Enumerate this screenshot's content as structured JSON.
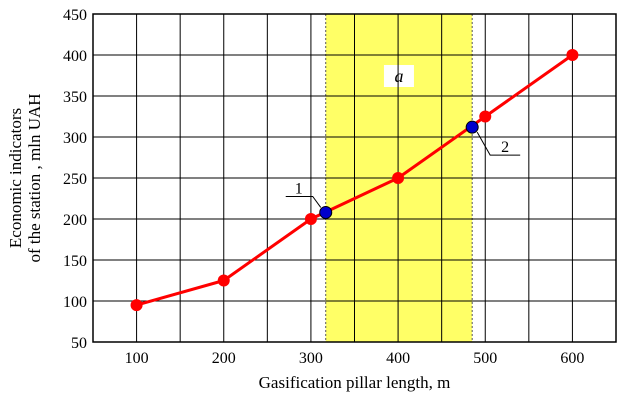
{
  "chart_data": {
    "type": "line",
    "title": "",
    "xlabel": "Gasification pillar length, m",
    "ylabel_lines": [
      "Economic indicators",
      "of the station , mln UAH"
    ],
    "xlim": [
      50,
      650
    ],
    "ylim": [
      50,
      450
    ],
    "x_ticks": [
      100,
      200,
      300,
      400,
      500,
      600
    ],
    "y_ticks": [
      50,
      100,
      150,
      200,
      250,
      300,
      350,
      400,
      450
    ],
    "grid": true,
    "series": [
      {
        "color": "#ff0000",
        "marker": "circle",
        "x": [
          100,
          200,
          300,
          400,
          500,
          600
        ],
        "y": [
          95,
          125,
          200,
          250,
          325,
          400
        ]
      }
    ],
    "highlight_region": {
      "label": "a",
      "x_range": [
        317,
        485
      ],
      "color": "#ffff66"
    },
    "marked_points": [
      {
        "label": "1",
        "x": 317,
        "y": 208,
        "color": "#0000cc"
      },
      {
        "label": "2",
        "x": 485,
        "y": 312,
        "color": "#0000cc"
      }
    ]
  }
}
